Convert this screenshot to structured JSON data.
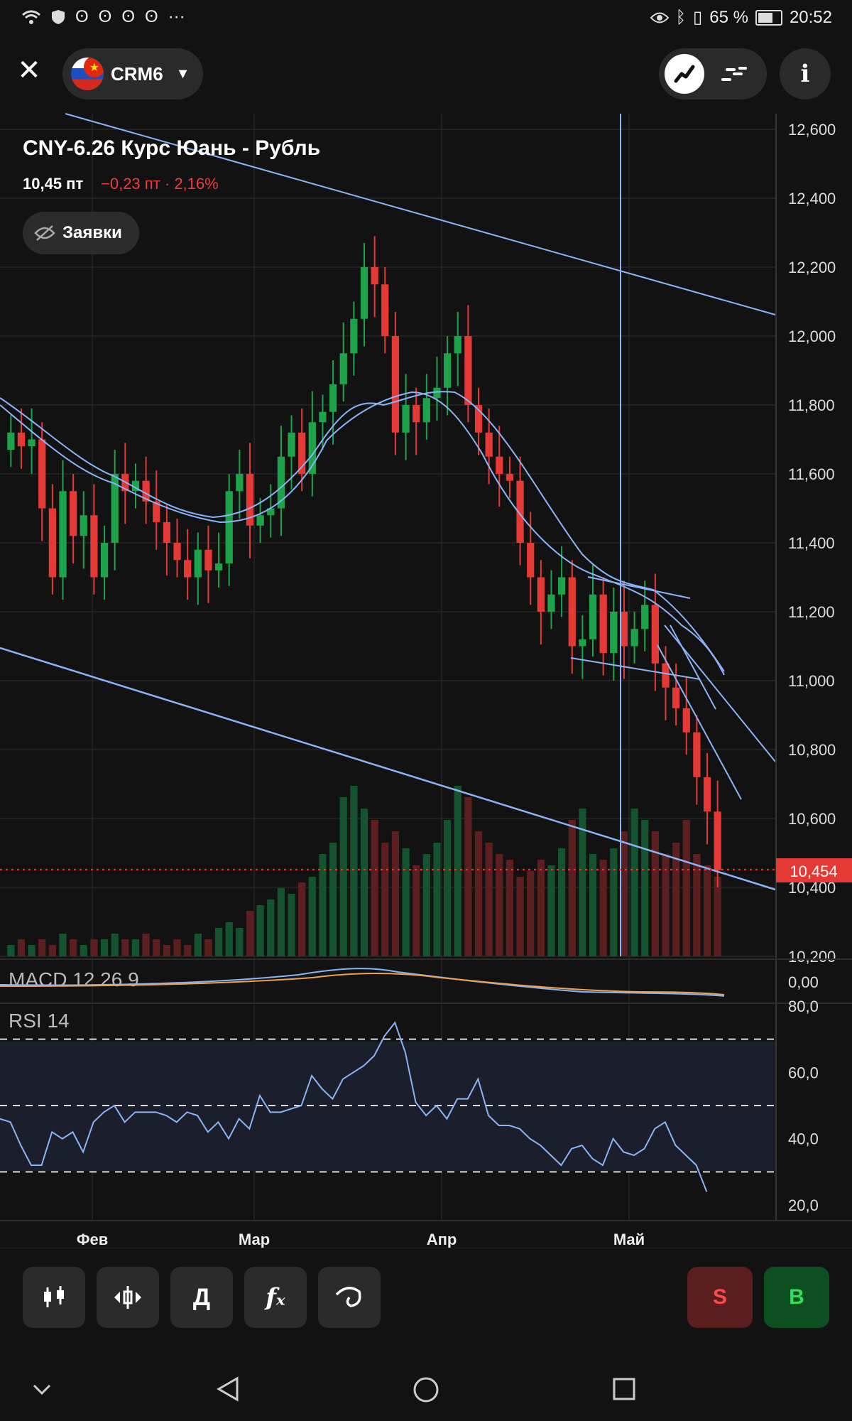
{
  "status_bar": {
    "icons": [
      "wifi-icon",
      "shield-icon",
      "app-notification-icon",
      "app-notification-icon",
      "app-notification-icon",
      "app-notification-icon"
    ],
    "more": "···",
    "battery": "65 %",
    "time": "20:52"
  },
  "header": {
    "ticker": "CRM6",
    "instrument_title": "CNY-6.26 Курс Юань - Рубль",
    "price": "10,45 пт",
    "change": "−0,23 пт · 2,16%",
    "orders_label": "Заявки",
    "info_label": "i"
  },
  "chart_data": [
    {
      "type": "candlestick",
      "title": "CNY-6.26 Курс Юань - Рубль",
      "x_labels": [
        "Фев",
        "Мар",
        "Апр",
        "Май"
      ],
      "y_ticks": [
        "12,600",
        "12,400",
        "12,200",
        "12,000",
        "11,800",
        "11,600",
        "11,400",
        "11,200",
        "11,000",
        "10,800",
        "10,600",
        "10,400",
        "10,200"
      ],
      "ylim": [
        10.2,
        12.6
      ],
      "last_price": 10.454,
      "last_price_label": "10,454",
      "series": [
        {
          "name": "price",
          "close": [
            11.72,
            11.68,
            11.7,
            11.5,
            11.3,
            11.55,
            11.42,
            11.48,
            11.3,
            11.4,
            11.6,
            11.55,
            11.58,
            11.52,
            11.46,
            11.4,
            11.35,
            11.3,
            11.38,
            11.32,
            11.34,
            11.55,
            11.6,
            11.45,
            11.48,
            11.5,
            11.65,
            11.72,
            11.6,
            11.75,
            11.78,
            11.86,
            11.95,
            12.05,
            12.2,
            12.15,
            12.0,
            11.72,
            11.8,
            11.75,
            11.82,
            11.85,
            11.95,
            12.0,
            11.8,
            11.72,
            11.65,
            11.6,
            11.58,
            11.4,
            11.3,
            11.2,
            11.25,
            11.3,
            11.1,
            11.12,
            11.25,
            11.08,
            11.2,
            11.1,
            11.15,
            11.22,
            11.05,
            10.98,
            10.92,
            10.85,
            10.72,
            10.62,
            10.45
          ]
        }
      ]
    },
    {
      "type": "bar",
      "title": "volume",
      "note": "volume histogram (relative heights)",
      "values": [
        2,
        3,
        2,
        3,
        2,
        4,
        3,
        2,
        3,
        3,
        4,
        3,
        3,
        4,
        3,
        2,
        3,
        2,
        4,
        3,
        5,
        6,
        5,
        8,
        9,
        10,
        12,
        11,
        13,
        14,
        18,
        20,
        28,
        30,
        26,
        24,
        20,
        22,
        19,
        16,
        18,
        20,
        24,
        30,
        28,
        22,
        20,
        18,
        17,
        14,
        15,
        17,
        16,
        19,
        24,
        26,
        18,
        17,
        19,
        22,
        26,
        24,
        22,
        18,
        20,
        24,
        18,
        16,
        14
      ]
    },
    {
      "type": "line",
      "title": "MACD 12 26 9",
      "zero_label": "0,00"
    },
    {
      "type": "line",
      "title": "RSI 14",
      "y_ticks": [
        "80,0",
        "60,0",
        "40,0",
        "20,0"
      ],
      "ylim": [
        20,
        80
      ],
      "bands": [
        70,
        50,
        30
      ],
      "values": [
        46,
        45,
        38,
        32,
        32,
        42,
        40,
        42,
        36,
        45,
        48,
        50,
        45,
        48,
        48,
        48,
        47,
        45,
        48,
        47,
        42,
        45,
        40,
        46,
        43,
        53,
        48,
        48,
        49,
        50,
        59,
        55,
        52,
        58,
        60,
        62,
        65,
        71,
        75,
        66,
        51,
        47,
        50,
        46,
        52,
        52,
        58,
        47,
        44,
        44,
        43,
        40,
        38,
        35,
        32,
        37,
        38,
        34,
        32,
        40,
        36,
        35,
        37,
        43,
        45,
        38,
        35,
        32,
        24
      ]
    }
  ],
  "toolbar": {
    "candles_icon": "candles-icon",
    "compare_icon": "compare-icon",
    "drawing_label": "Д",
    "indicators_icon": "fx-icon",
    "tools_icon": "draw-tool-icon",
    "sell_label": "S",
    "buy_label": "B"
  },
  "navbar": {
    "icons": [
      "chevron-down-icon",
      "back-icon",
      "home-icon",
      "recents-icon"
    ]
  },
  "colors": {
    "up": "#1fa34a",
    "down": "#e53935",
    "trendline": "#8ab4f8",
    "accent_price": "#e53935",
    "background": "#121212"
  }
}
